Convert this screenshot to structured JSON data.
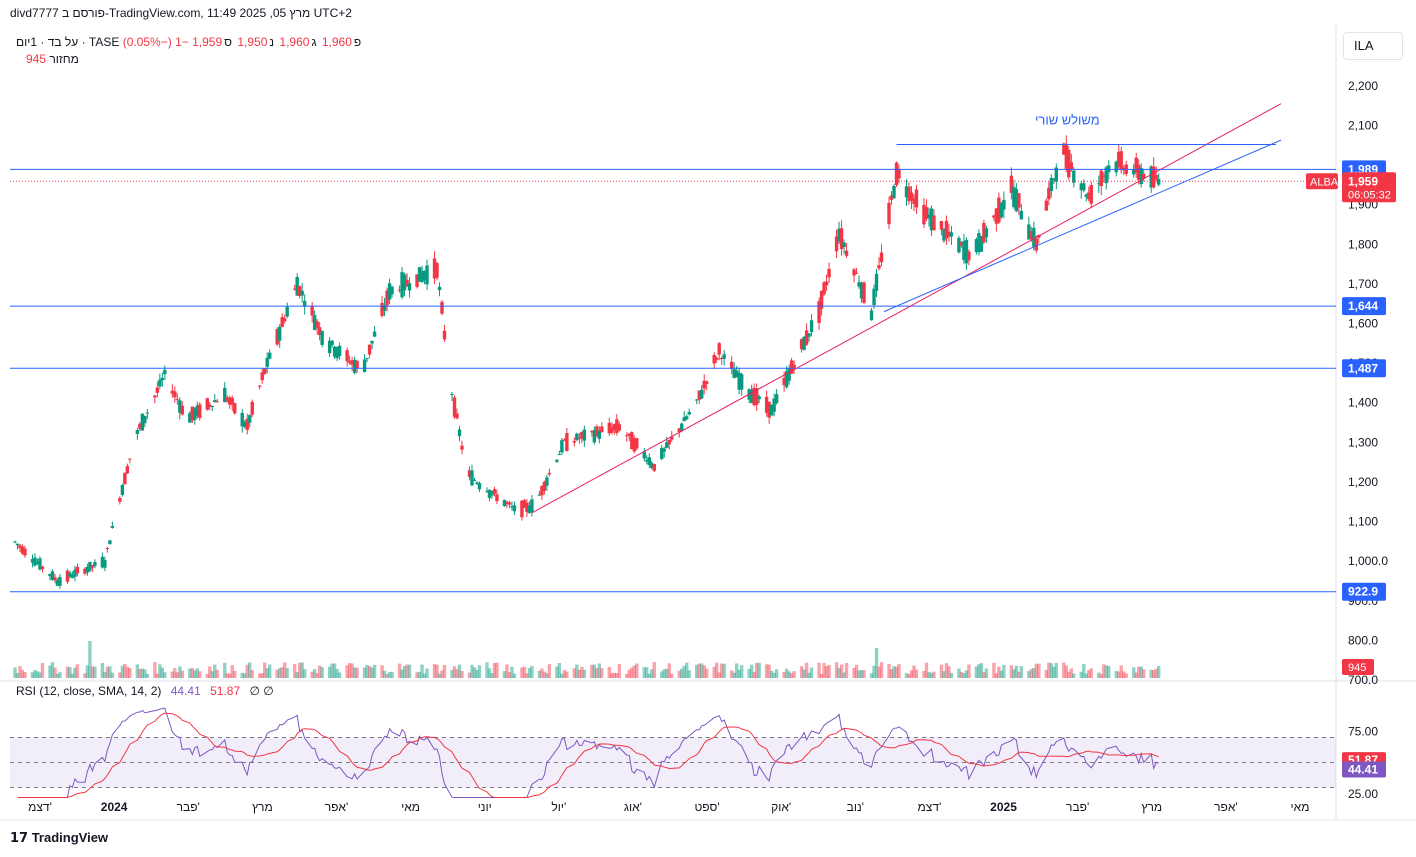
{
  "header": {
    "caption": "divd7777 פורסם ב-TradingView.com, 11:49 מרץ 05, 2025 UTC+2",
    "symbol_line": "על בד · 1יום · TASE",
    "open_label": "פ",
    "open": "1,960",
    "high_label": "ג",
    "high": "1,960",
    "low_label": "נ",
    "low": "1,950",
    "close_label": "ס",
    "close": "1,959",
    "change": "−1 (−0.05%)",
    "volume_label": "מחזור",
    "volume": "945"
  },
  "currency_button": "ILA",
  "footer_logo": "TradingView",
  "colors": {
    "up": "#089981",
    "down": "#f23645",
    "hline": "#2962ff",
    "trend_red": "#e91e63",
    "trend_blue": "#2962ff",
    "rsi": "#7e57c2",
    "rsi_ma": "#f23645"
  },
  "chart_data": {
    "type": "candlestick",
    "price_axis": {
      "ticks": [
        "2,200",
        "2,100",
        "2,000",
        "1,900",
        "1,800",
        "1,700",
        "1,600",
        "1,500",
        "1,400",
        "1,300",
        "1,200",
        "1,100",
        "1,000.0",
        "900.0",
        "800.0",
        "700.0"
      ],
      "tick_values": [
        2200,
        2100,
        2000,
        1900,
        1800,
        1700,
        1600,
        1500,
        1400,
        1300,
        1200,
        1100,
        1000,
        900,
        800,
        700
      ],
      "ylim": [
        700,
        2240
      ]
    },
    "time_axis": {
      "labels": [
        "דצמ'",
        "2024",
        "פבר'",
        "מרץ",
        "אפר'",
        "מאי",
        "יוני",
        "יול'",
        "אוג'",
        "ספט'",
        "אוק'",
        "נוב'",
        "דצמ'",
        "2025",
        "פבר'",
        "מרץ",
        "אפר'",
        "מאי"
      ],
      "bold": [
        false,
        true,
        false,
        false,
        false,
        false,
        false,
        false,
        false,
        false,
        false,
        false,
        false,
        true,
        false,
        false,
        false,
        false
      ],
      "range": [
        "2023-12-01",
        "2025-05-15"
      ]
    },
    "horizontal_levels": [
      {
        "value": 1989,
        "label": "1,989"
      },
      {
        "value": 1644,
        "label": "1,644"
      },
      {
        "value": 1487,
        "label": "1,487"
      },
      {
        "value": 922.9,
        "label": "922.9"
      }
    ],
    "last_price": {
      "symbol": "ALBA",
      "value": 1959,
      "label": "1,959",
      "countdown": "06:05:32"
    },
    "volume_label": "945",
    "annotation": {
      "text": "משולש שורי",
      "value": 2113
    },
    "triangle_top": {
      "value": 2052,
      "from": "2024-11-20",
      "to": "2025-04-21"
    },
    "trendlines": [
      {
        "name": "red",
        "from": [
          "2024-06-27",
          1122
        ],
        "to": [
          "2025-04-23",
          2155
        ]
      },
      {
        "name": "blue",
        "from": [
          "2024-11-15",
          1630
        ],
        "to": [
          "2025-04-23",
          2063
        ]
      }
    ],
    "price_path": [
      [
        "2023-12-01",
        1060
      ],
      [
        "2023-12-20",
        950
      ],
      [
        "2024-01-08",
        1000
      ],
      [
        "2024-01-12",
        1110
      ],
      [
        "2024-01-20",
        1310
      ],
      [
        "2024-02-01",
        1470
      ],
      [
        "2024-02-10",
        1360
      ],
      [
        "2024-02-25",
        1420
      ],
      [
        "2024-03-05",
        1340
      ],
      [
        "2024-03-12",
        1480
      ],
      [
        "2024-03-25",
        1700
      ],
      [
        "2024-04-05",
        1560
      ],
      [
        "2024-04-20",
        1480
      ],
      [
        "2024-05-01",
        1680
      ],
      [
        "2024-05-20",
        1740
      ],
      [
        "2024-05-25",
        1460
      ],
      [
        "2024-06-01",
        1220
      ],
      [
        "2024-06-20",
        1130
      ],
      [
        "2024-06-28",
        1140
      ],
      [
        "2024-07-10",
        1300
      ],
      [
        "2024-08-01",
        1340
      ],
      [
        "2024-08-15",
        1240
      ],
      [
        "2024-09-01",
        1400
      ],
      [
        "2024-09-10",
        1530
      ],
      [
        "2024-09-20",
        1440
      ],
      [
        "2024-10-01",
        1380
      ],
      [
        "2024-10-10",
        1500
      ],
      [
        "2024-10-20",
        1630
      ],
      [
        "2024-10-28",
        1830
      ],
      [
        "2024-11-10",
        1630
      ],
      [
        "2024-11-20",
        1980
      ],
      [
        "2024-12-01",
        1880
      ],
      [
        "2024-12-20",
        1770
      ],
      [
        "2025-01-05",
        1940
      ],
      [
        "2025-01-15",
        1800
      ],
      [
        "2025-01-25",
        2040
      ],
      [
        "2025-02-05",
        1920
      ],
      [
        "2025-02-15",
        2010
      ],
      [
        "2025-03-05",
        1959
      ]
    ],
    "volume_spikes": [
      [
        "2024-01-12",
        800
      ],
      [
        "2024-05-25",
        1100
      ],
      [
        "2024-11-12",
        800
      ],
      [
        "2024-01-02",
        870
      ]
    ],
    "rsi": {
      "label": "RSI (12, close, SMA, 14, 2)",
      "value": "44.41",
      "ma_value": "51.87",
      "extra": "∅ ∅",
      "levels": [
        70,
        50,
        30
      ],
      "ticks": [
        "75.00",
        "25.00"
      ],
      "ylim": [
        20,
        100
      ]
    }
  }
}
